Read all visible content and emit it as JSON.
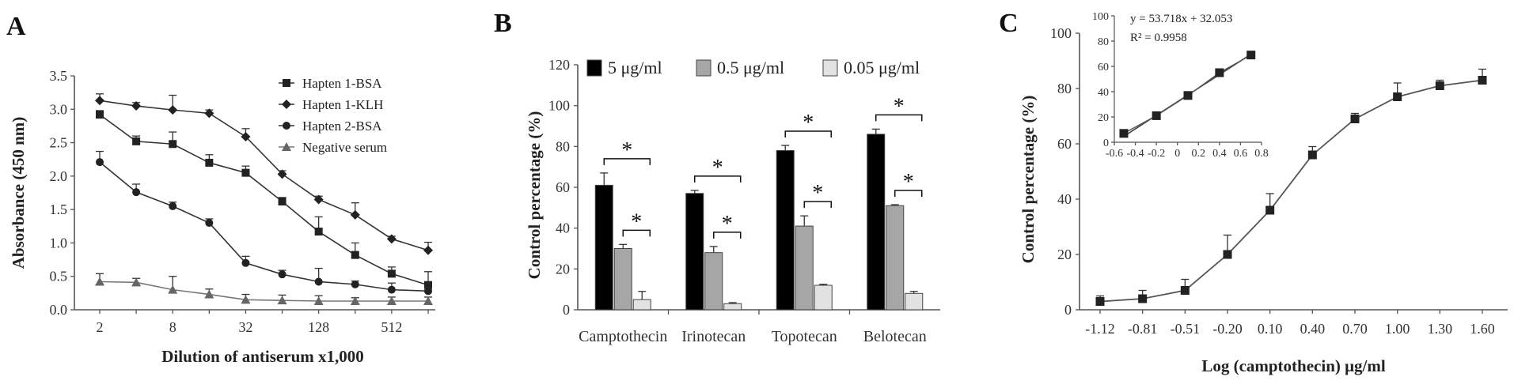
{
  "chart_data": [
    {
      "panel": "A",
      "type": "line",
      "xlabel": "Dilution of antiserum x1,000",
      "ylabel": "Absorbance (450 nm)",
      "ylim": [
        0,
        3.5
      ],
      "yticks": [
        "0.0",
        "0.5",
        "1.0",
        "1.5",
        "2.0",
        "2.5",
        "3.0",
        "3.5"
      ],
      "x": [
        2,
        4,
        8,
        16,
        32,
        64,
        128,
        256,
        512,
        1024
      ],
      "xticks": [
        "2",
        "8",
        "32",
        "128",
        "512"
      ],
      "legend_position": "top-right",
      "series": [
        {
          "name": "Hapten 1-BSA",
          "marker": "square",
          "values": [
            2.92,
            2.52,
            2.48,
            2.2,
            2.05,
            1.62,
            1.17,
            0.82,
            0.54,
            0.37
          ],
          "errors": [
            0.06,
            0.08,
            0.18,
            0.12,
            0.1,
            0.06,
            0.22,
            0.18,
            0.1,
            0.2
          ]
        },
        {
          "name": "Hapten 1-KLH",
          "marker": "diamond",
          "values": [
            3.13,
            3.05,
            2.99,
            2.94,
            2.59,
            2.03,
            1.65,
            1.42,
            1.06,
            0.89
          ],
          "errors": [
            0.1,
            0.05,
            0.22,
            0.05,
            0.12,
            0.05,
            0.05,
            0.18,
            0.04,
            0.12
          ]
        },
        {
          "name": "Hapten 2-BSA",
          "marker": "circle",
          "values": [
            2.21,
            1.76,
            1.55,
            1.3,
            0.7,
            0.53,
            0.42,
            0.38,
            0.3,
            0.28
          ],
          "errors": [
            0.16,
            0.12,
            0.06,
            0.06,
            0.1,
            0.06,
            0.2,
            0.05,
            0.1,
            0.05
          ]
        },
        {
          "name": "Negative serum",
          "marker": "triangle",
          "values": [
            0.42,
            0.41,
            0.3,
            0.23,
            0.15,
            0.14,
            0.13,
            0.13,
            0.13,
            0.13
          ],
          "errors": [
            0.12,
            0.06,
            0.2,
            0.08,
            0.08,
            0.08,
            0.08,
            0.05,
            0.06,
            0.06
          ]
        }
      ]
    },
    {
      "panel": "B",
      "type": "bar",
      "xlabel": "",
      "ylabel": "Control percentage (%)",
      "ylim": [
        0,
        120
      ],
      "yticks": [
        "0",
        "20",
        "40",
        "60",
        "80",
        "100",
        "120"
      ],
      "categories": [
        "Camptothecin",
        "Irinotecan",
        "Topotecan",
        "Belotecan"
      ],
      "legend_position": "top",
      "significance": "*",
      "series": [
        {
          "name": "5 μg/ml",
          "color": "#000000",
          "values": [
            61,
            57,
            78,
            86
          ],
          "errors": [
            6,
            1.5,
            2.5,
            2.5
          ]
        },
        {
          "name": "0.5 μg/ml",
          "color": "#a6a6a6",
          "values": [
            30,
            28,
            41,
            51
          ],
          "errors": [
            2,
            3,
            5,
            0.5
          ]
        },
        {
          "name": "0.05 μg/ml",
          "color": "#e2e2e2",
          "values": [
            5,
            3,
            12,
            8
          ],
          "errors": [
            4,
            0.5,
            0.5,
            1
          ]
        }
      ]
    },
    {
      "panel": "C",
      "type": "line",
      "xlabel": "Log (camptothecin) μg/ml",
      "ylabel": "Control percentage (%)",
      "ylim": [
        0,
        100
      ],
      "yticks": [
        "0",
        "20",
        "40",
        "60",
        "80",
        "100"
      ],
      "xticks": [
        "-1.12",
        "-0.81",
        "-0.51",
        "-0.20",
        "0.10",
        "0.40",
        "0.70",
        "1.00",
        "1.30",
        "1.60"
      ],
      "x": [
        -1.12,
        -0.81,
        -0.51,
        -0.2,
        0.1,
        0.4,
        0.7,
        1.0,
        1.3,
        1.6
      ],
      "values": [
        3,
        4,
        7,
        20,
        36,
        56,
        69,
        77,
        81,
        83
      ],
      "errors": [
        2,
        3,
        4,
        7,
        6,
        3,
        2,
        5,
        2,
        4
      ],
      "inset": {
        "equation": "y = 53.718x + 32.053",
        "r2": "R² = 0.9958",
        "xticks": [
          "-0.6",
          "-0.4",
          "-0.2",
          "0",
          "0.2",
          "0.4",
          "0.6",
          "0.8"
        ],
        "yticks": [
          "0",
          "20",
          "40",
          "60",
          "80",
          "100"
        ],
        "xlim": [
          -0.6,
          0.8
        ],
        "ylim": [
          0,
          100
        ],
        "x": [
          -0.51,
          -0.2,
          0.1,
          0.4,
          0.7
        ],
        "values": [
          7,
          21,
          37,
          55,
          69
        ]
      }
    }
  ]
}
